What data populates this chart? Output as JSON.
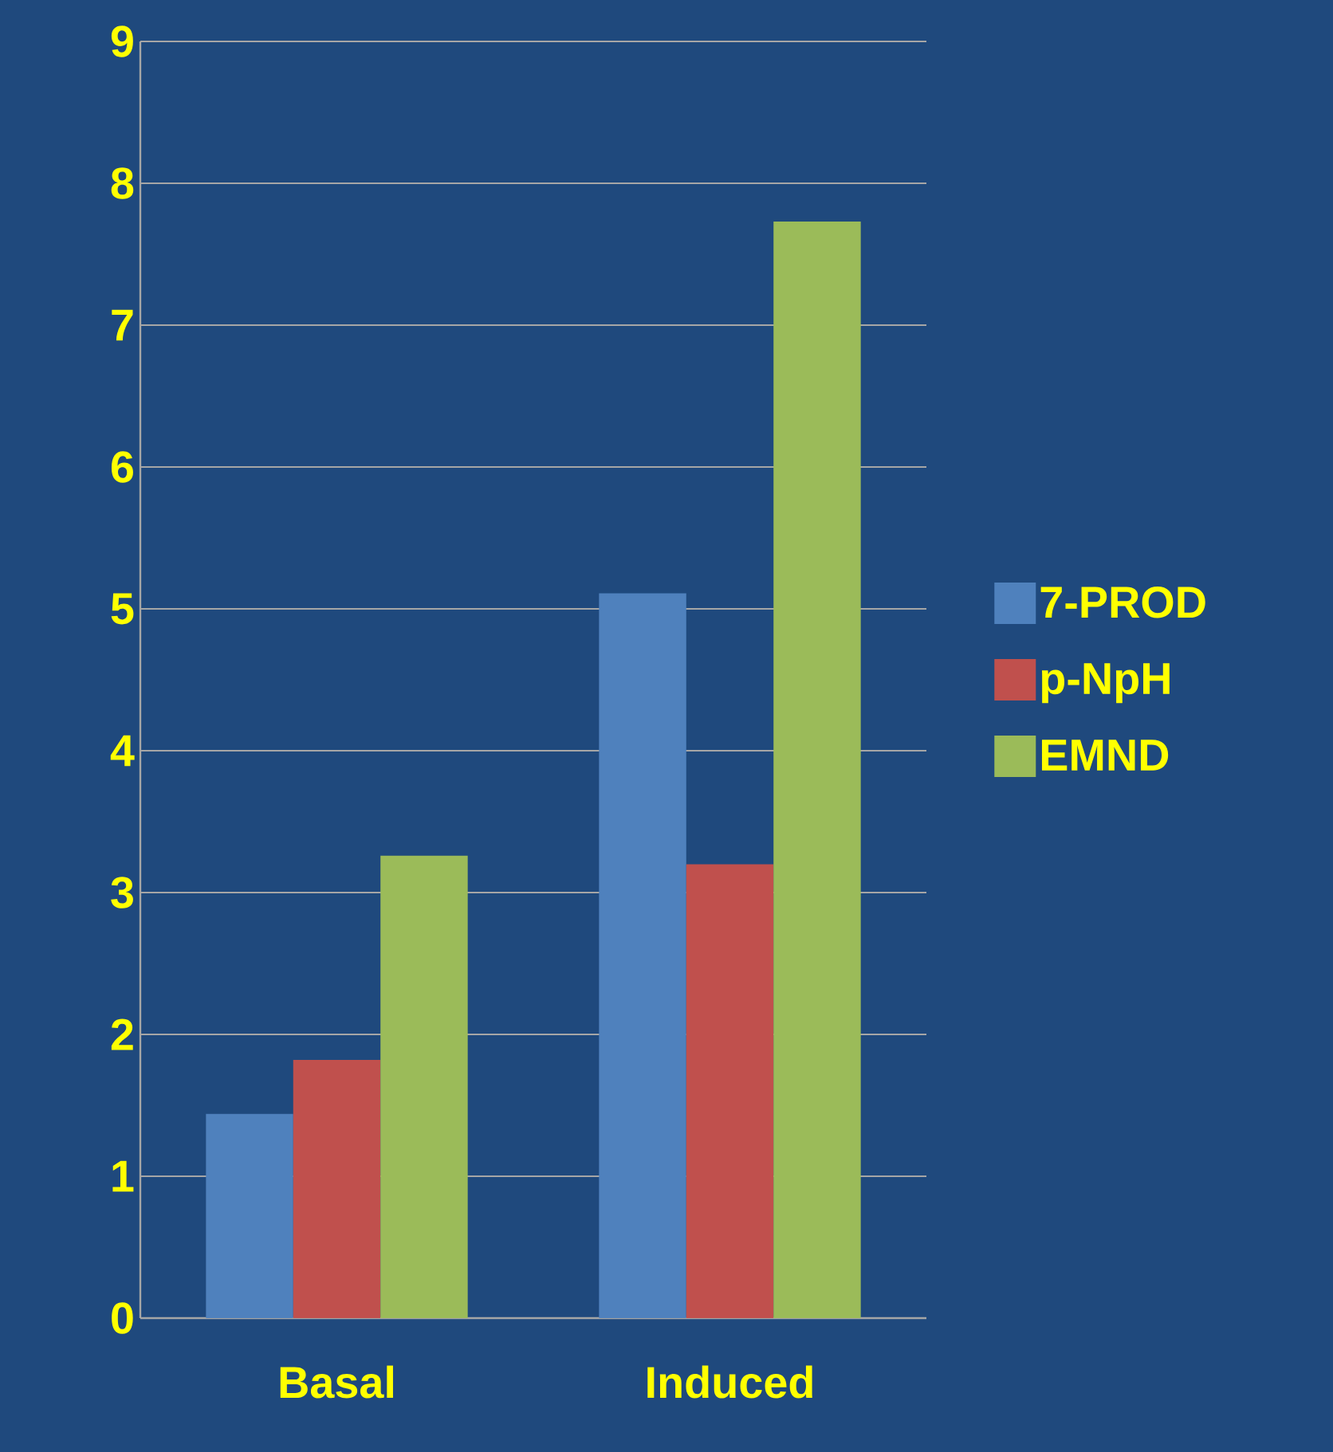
{
  "chart_data": {
    "type": "bar",
    "categories": [
      "Basal",
      "Induced"
    ],
    "series": [
      {
        "name": "7-PROD",
        "color": "#4f81bd",
        "values": [
          1.44,
          5.11
        ]
      },
      {
        "name": "p-NpH",
        "color": "#c0504d",
        "values": [
          1.82,
          3.2
        ]
      },
      {
        "name": "EMND",
        "color": "#9bbb59",
        "values": [
          3.26,
          7.73
        ]
      }
    ],
    "ylim": [
      0,
      9
    ],
    "yticks": [
      0,
      1,
      2,
      3,
      4,
      5,
      6,
      7,
      8,
      9
    ],
    "grid": "y",
    "legend": "right"
  }
}
